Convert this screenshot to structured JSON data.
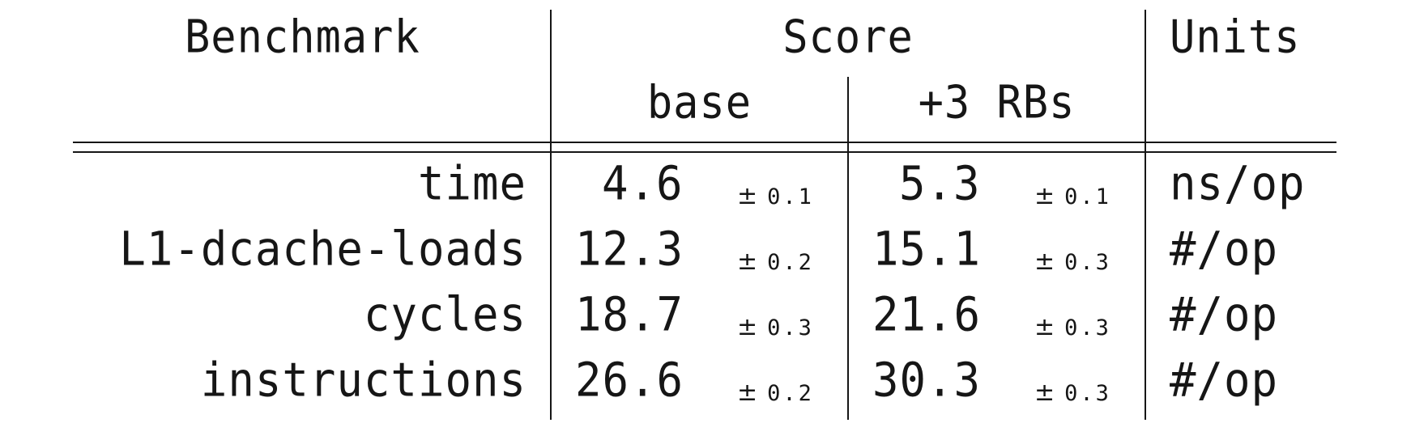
{
  "table": {
    "headers": {
      "benchmark": "Benchmark",
      "score": "Score",
      "units": "Units",
      "base": "base",
      "rbs": "+3 RBs"
    },
    "rows": [
      {
        "benchmark": "time",
        "base_value": "4.6",
        "base_err": "0.1",
        "rbs_value": "5.3",
        "rbs_err": "0.1",
        "units": "ns/op"
      },
      {
        "benchmark": "L1-dcache-loads",
        "base_value": "12.3",
        "base_err": "0.2",
        "rbs_value": "15.1",
        "rbs_err": "0.3",
        "units": "#/op"
      },
      {
        "benchmark": "cycles",
        "base_value": "18.7",
        "base_err": "0.3",
        "rbs_value": "21.6",
        "rbs_err": "0.3",
        "units": "#/op"
      },
      {
        "benchmark": "instructions",
        "base_value": "26.6",
        "base_err": "0.2",
        "rbs_value": "30.3",
        "rbs_err": "0.3",
        "units": "#/op"
      }
    ],
    "pm_symbol": "±"
  }
}
